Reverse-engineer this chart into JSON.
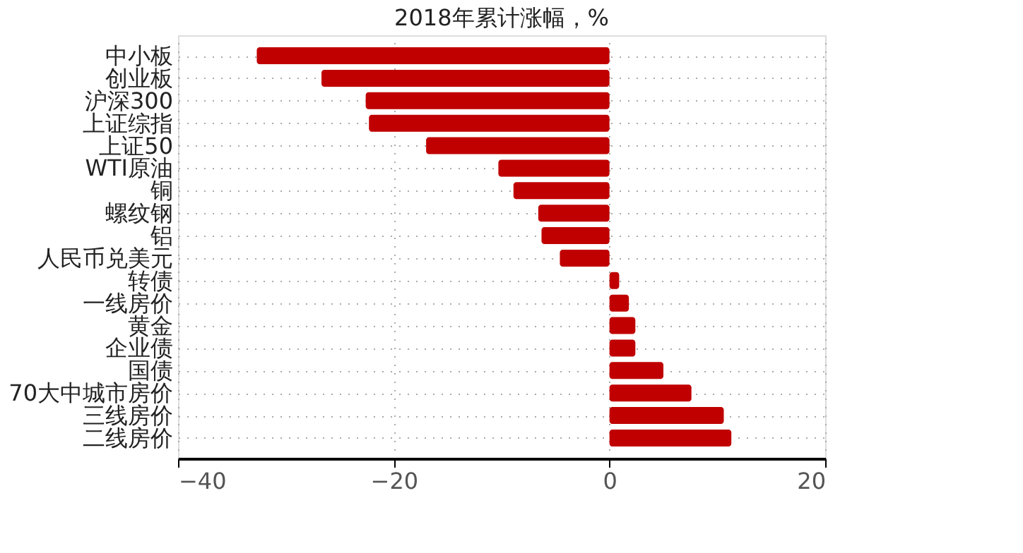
{
  "chart_data": {
    "type": "bar",
    "orientation": "horizontal",
    "title": "2018年累计涨幅，%",
    "categories": [
      "中小板",
      "创业板",
      "沪深300",
      "上证综指",
      "上证50",
      "WTI原油",
      "铜",
      "螺纹钢",
      "铝",
      "人民币兑美元",
      "转债",
      "一线房价",
      "黄金",
      "企业债",
      "国债",
      "70大中城市房价",
      "三线房价",
      "二线房价"
    ],
    "values": [
      -32.7,
      -26.7,
      -22.6,
      -22.3,
      -17.0,
      -10.3,
      -8.9,
      -6.6,
      -6.3,
      -4.6,
      0.9,
      1.8,
      2.4,
      2.4,
      5.0,
      7.6,
      10.6,
      11.3
    ],
    "color": "#c00000",
    "xlim": [
      -40,
      20
    ],
    "xticks": [
      -40,
      -20,
      0,
      20
    ],
    "grid": true
  }
}
